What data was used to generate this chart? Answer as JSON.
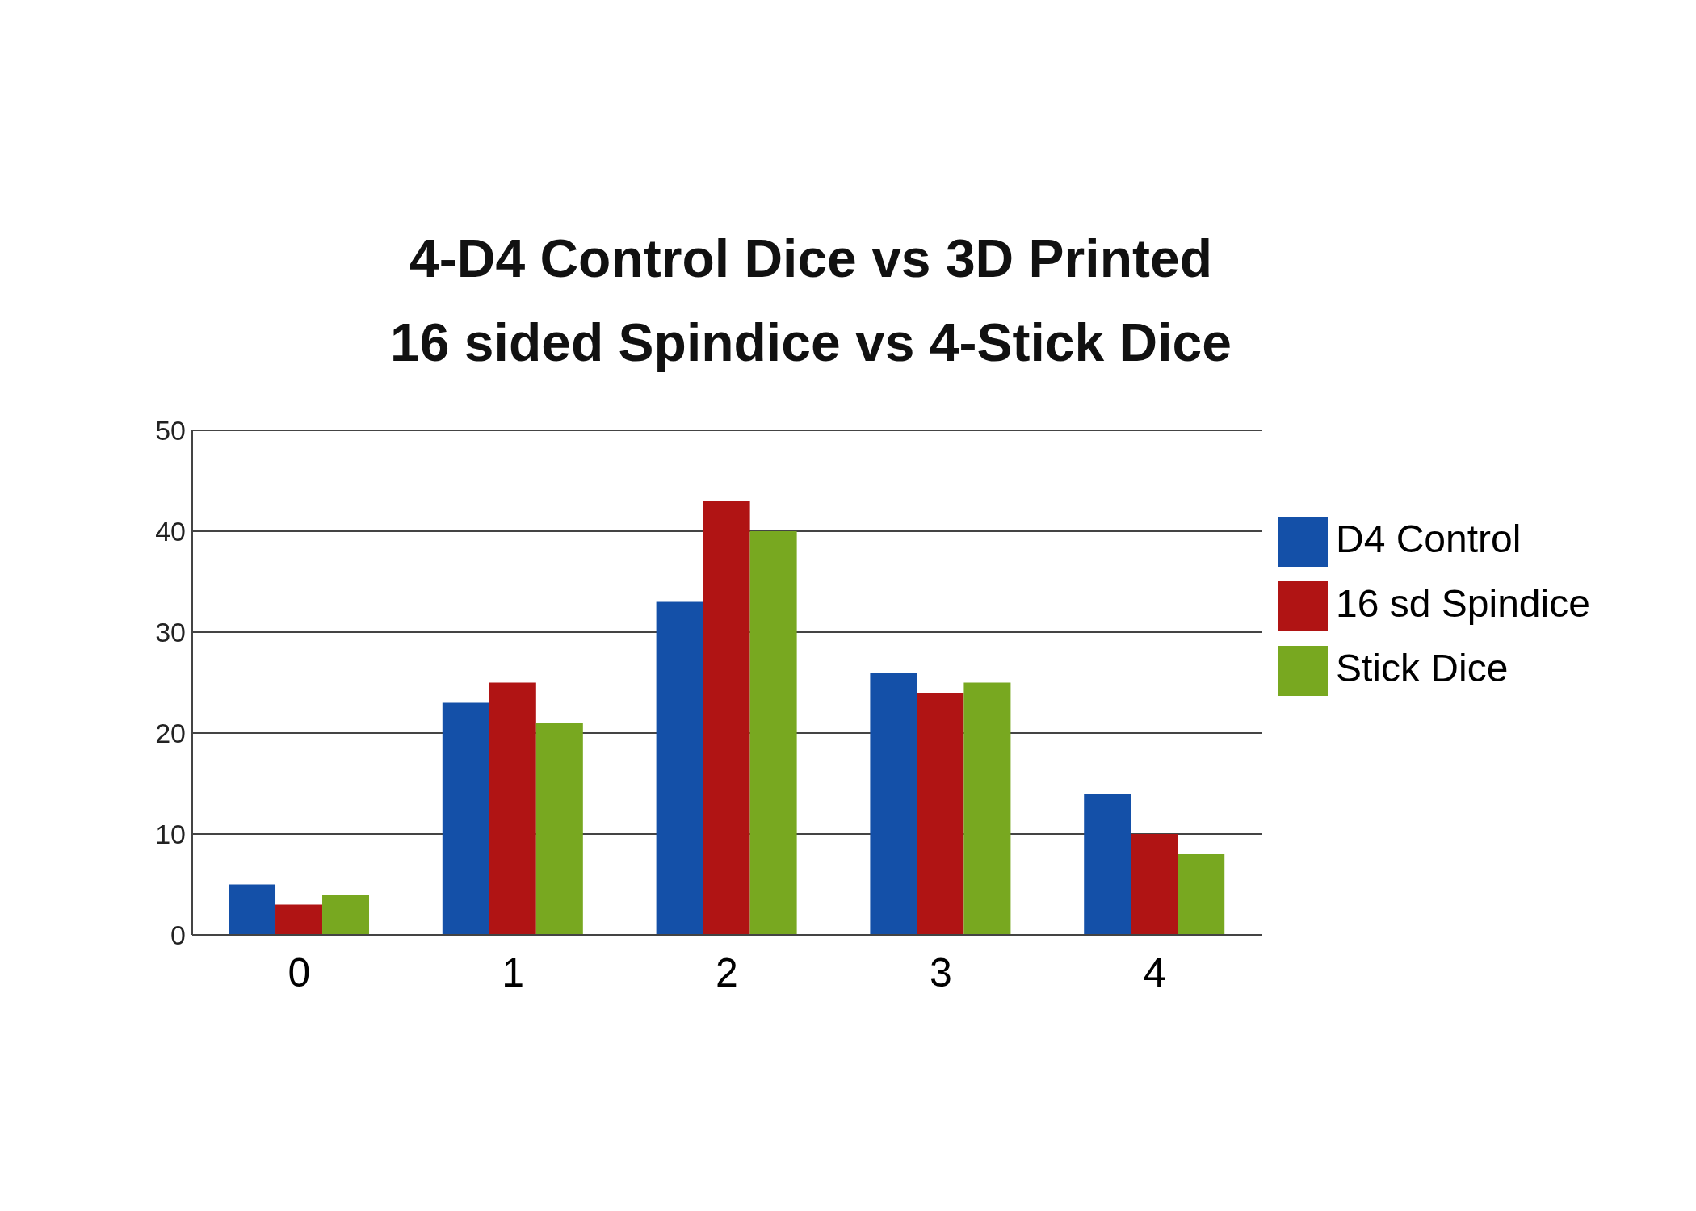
{
  "chart_data": {
    "type": "bar",
    "title": "4-D4 Control Dice vs 3D Printed\n16 sided Spindice vs 4-Stick Dice",
    "categories": [
      "0",
      "1",
      "2",
      "3",
      "4"
    ],
    "series": [
      {
        "name": "D4 Control",
        "color": "#1450a8",
        "values": [
          5,
          23,
          33,
          26,
          14
        ]
      },
      {
        "name": "16 sd Spindice",
        "color": "#b01414",
        "values": [
          3,
          25,
          43,
          24,
          10
        ]
      },
      {
        "name": "Stick Dice",
        "color": "#78a820",
        "values": [
          4,
          21,
          40,
          25,
          8
        ]
      }
    ],
    "ylim": [
      0,
      50
    ],
    "yticks": [
      0,
      10,
      20,
      30,
      40,
      50
    ],
    "grid": "y",
    "legend": "right"
  }
}
